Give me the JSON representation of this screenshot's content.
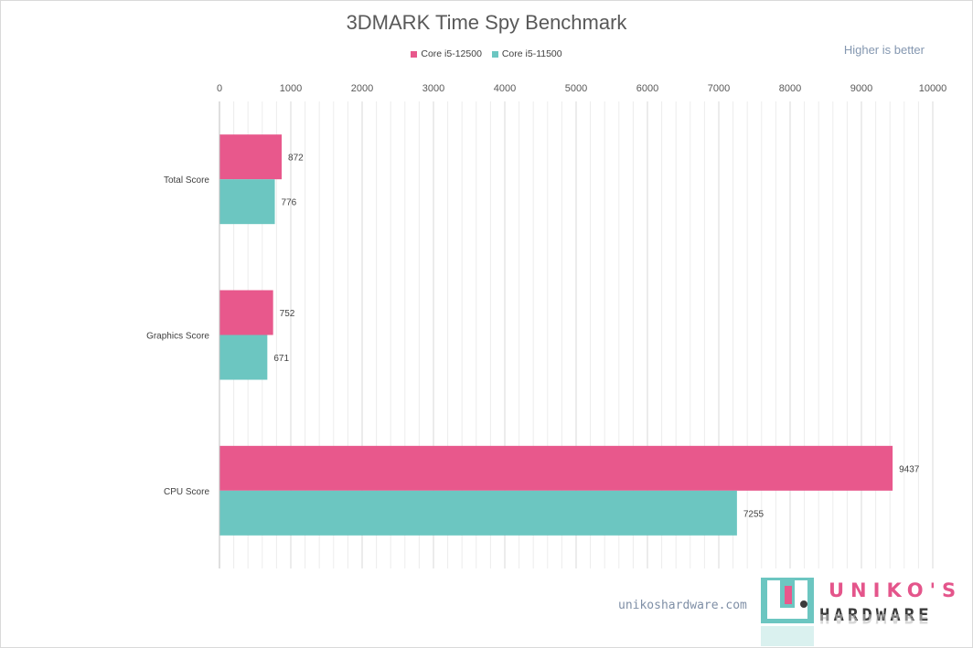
{
  "chart_data": {
    "type": "bar",
    "orientation": "horizontal",
    "title": "3DMARK Time Spy Benchmark",
    "annotation": "Higher is better",
    "categories": [
      "Total Score",
      "Graphics Score",
      "CPU Score"
    ],
    "series": [
      {
        "name": "Core i5-12500",
        "color": "#e8588c",
        "values": [
          872,
          752,
          9437
        ]
      },
      {
        "name": "Core i5-11500",
        "color": "#6cc6c1",
        "values": [
          776,
          671,
          7255
        ]
      }
    ],
    "xlim": [
      0,
      10000
    ],
    "xticks": [
      0,
      1000,
      2000,
      3000,
      4000,
      5000,
      6000,
      7000,
      8000,
      9000,
      10000
    ],
    "x_axis_position": "top",
    "grid": true,
    "legend_position": "top"
  },
  "watermark": {
    "site": "unikoshardware.com",
    "brand_line1": "UNIKO'S",
    "brand_line2": "HARDWARE"
  },
  "colors": {
    "primary": "#e8588c",
    "secondary": "#6cc6c1"
  }
}
